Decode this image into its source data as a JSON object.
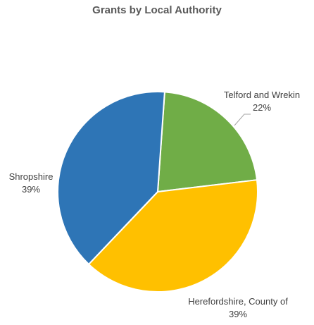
{
  "chart_data": {
    "type": "pie",
    "title": "Grants by Local Authority",
    "slices": [
      {
        "label": "Telford and Wrekin",
        "percent_label": "22%",
        "value": 22,
        "color": "#70AD47"
      },
      {
        "label": "Herefordshire, County of",
        "percent_label": "39%",
        "value": 39,
        "color": "#FFC000"
      },
      {
        "label": "Shropshire",
        "percent_label": "39%",
        "value": 39,
        "color": "#2E75B6"
      }
    ]
  }
}
